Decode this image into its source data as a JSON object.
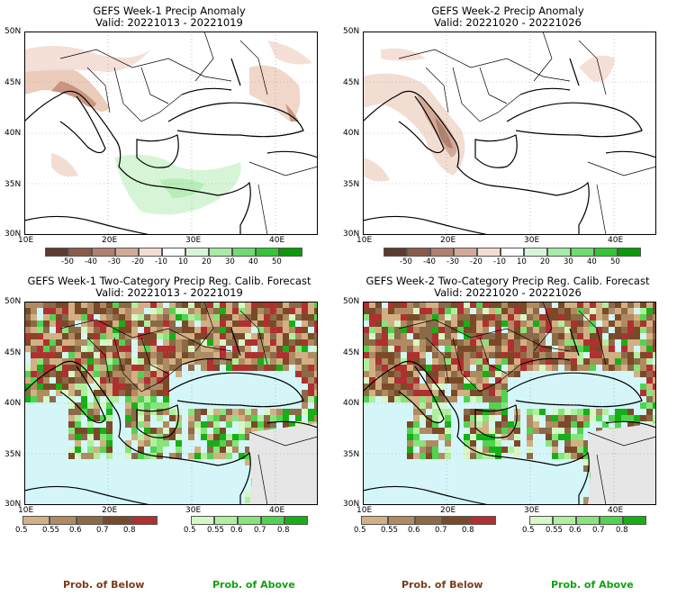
{
  "panels": [
    {
      "title": "GEFS Week-1 Precip Anomaly",
      "valid": "Valid: 20221013 - 20221019"
    },
    {
      "title": "GEFS Week-2 Precip Anomaly",
      "valid": "Valid: 20221020 - 20221026"
    },
    {
      "title": "GEFS Week-1 Two-Category Precip Reg. Calib. Forecast",
      "valid": "Valid: 20221013 - 20221019"
    },
    {
      "title": "GEFS Week-2 Two-Category Precip Reg. Calib. Forecast",
      "valid": "Valid: 20221020 - 20221026"
    }
  ],
  "lat_labels": [
    "50N",
    "45N",
    "40N",
    "35N",
    "30N"
  ],
  "lon_labels": [
    "10E",
    "20E",
    "30E",
    "40E"
  ],
  "anomaly_colorbar": {
    "labels": [
      "-50",
      "-40",
      "-30",
      "-20",
      "-10",
      "10",
      "20",
      "30",
      "40",
      "50"
    ],
    "colors": [
      "#5c3a2e",
      "#8a5a4a",
      "#b08070",
      "#d2aa98",
      "#f2ddd2",
      "#ffffff",
      "#d6f5d6",
      "#a6eaa6",
      "#6edc6e",
      "#33c533",
      "#0a9a0a"
    ]
  },
  "below_colorbar": {
    "labels": [
      "0.5",
      "0.55",
      "0.6",
      "0.7",
      "0.8"
    ],
    "colors": [
      "#d2b084",
      "#b08b62",
      "#8b6a48",
      "#7a4a28",
      "#b03030"
    ]
  },
  "above_colorbar": {
    "labels": [
      "0.5",
      "0.55",
      "0.6",
      "0.7",
      "0.8"
    ],
    "colors": [
      "#d6f7c6",
      "#b0ef9e",
      "#88e47a",
      "#50d450",
      "#16b016"
    ]
  },
  "footer": {
    "below": "Prob. of Below",
    "above": "Prob. of Above"
  },
  "colors": {
    "sea": "#d4f6f8",
    "nodata": "#e6e6e6",
    "land": "#ffffff"
  }
}
